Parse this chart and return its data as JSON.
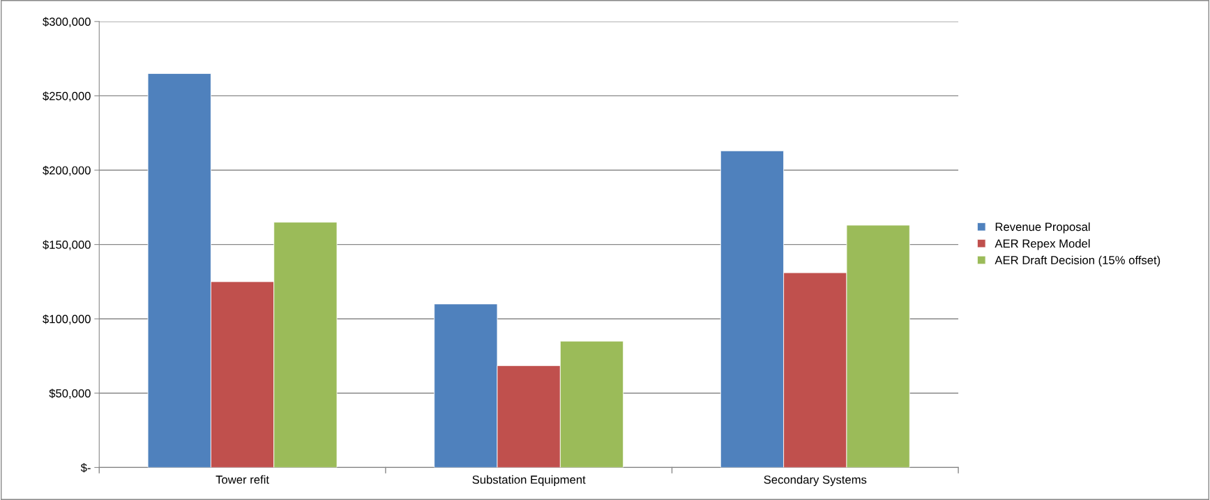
{
  "chart_data": {
    "type": "bar",
    "categories": [
      "Tower refit",
      "Substation Equipment",
      "Secondary Systems"
    ],
    "series": [
      {
        "name": "Revenue Proposal",
        "color": "#4f81bd",
        "values": [
          265000,
          110000,
          213000
        ]
      },
      {
        "name": "AER Repex Model",
        "color": "#c0504d",
        "values": [
          125000,
          68500,
          131000
        ]
      },
      {
        "name": "AER Draft Decision (15% offset)",
        "color": "#9bbb59",
        "values": [
          165000,
          85000,
          163000
        ]
      }
    ],
    "ylim": [
      0,
      300000
    ],
    "yticks": [
      {
        "value": 0,
        "label": "$-"
      },
      {
        "value": 50000,
        "label": "$50,000"
      },
      {
        "value": 100000,
        "label": "$100,000"
      },
      {
        "value": 150000,
        "label": "$150,000"
      },
      {
        "value": 200000,
        "label": "$200,000"
      },
      {
        "value": 250000,
        "label": "$250,000"
      },
      {
        "value": 300000,
        "label": "$300,000"
      }
    ],
    "grid": "y",
    "legend": "right"
  }
}
